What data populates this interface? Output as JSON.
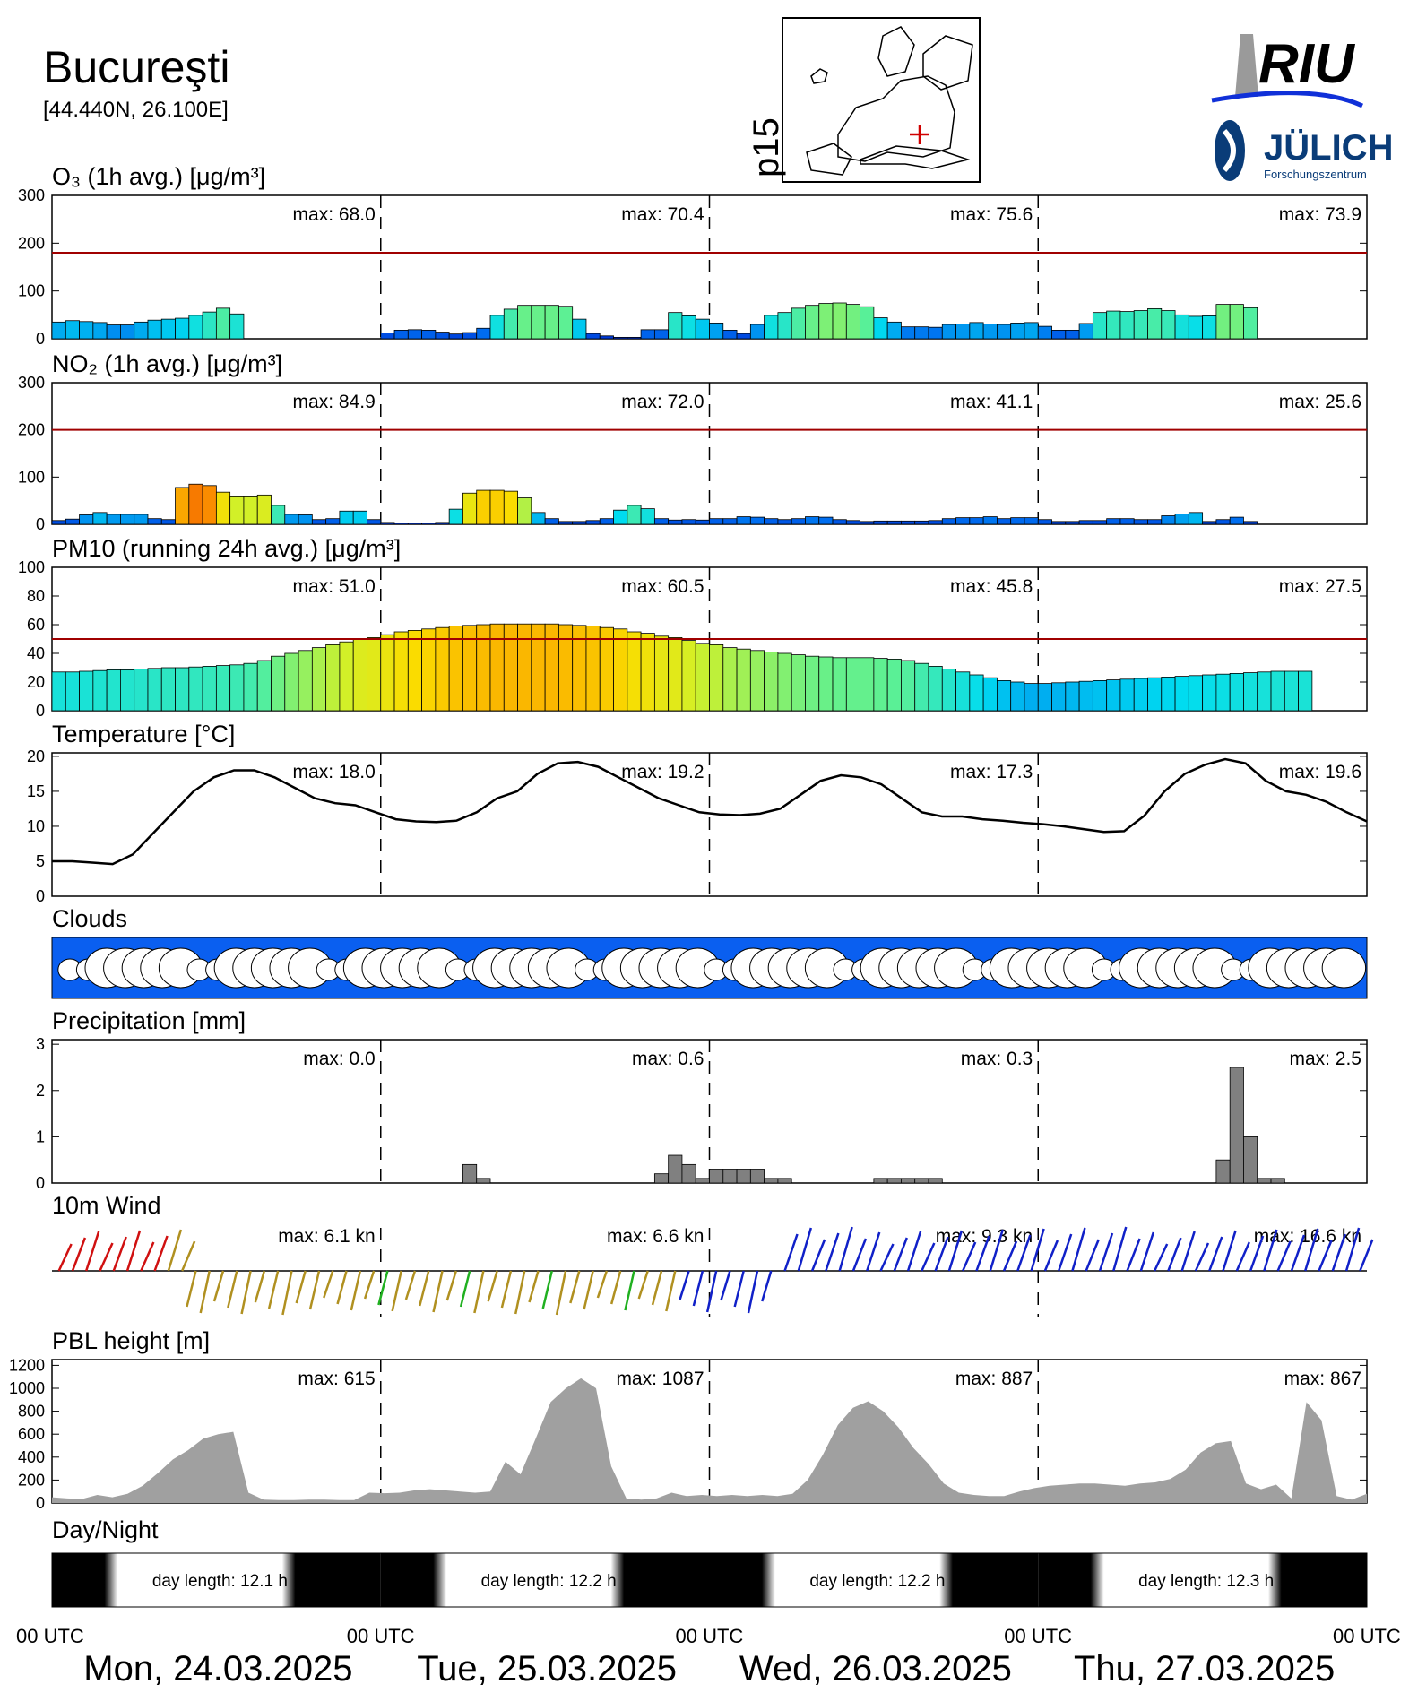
{
  "station": {
    "name": "Bucureşti",
    "coords": "[44.440N, 26.100E]",
    "map_label": "p15"
  },
  "logos": {
    "riu": "RIU",
    "julich": "JÜLICH",
    "julich_sub": "Forschungszentrum"
  },
  "panels": {
    "o3": {
      "title": "O₃ (1h avg.) [μg/m³]",
      "maxes": [
        "max:  68.0",
        "max:  70.4",
        "max:  75.6",
        "max:  73.9"
      ],
      "ticks": [
        "0",
        "100",
        "200",
        "300"
      ]
    },
    "no2": {
      "title": "NO₂ (1h avg.) [μg/m³]",
      "maxes": [
        "max:  84.9",
        "max:  72.0",
        "max:  41.1",
        "max:  25.6"
      ],
      "ticks": [
        "0",
        "100",
        "200",
        "300"
      ]
    },
    "pm10": {
      "title": "PM10 (running 24h avg.) [μg/m³]",
      "maxes": [
        "max:  51.0",
        "max:  60.5",
        "max:  45.8",
        "max:  27.5"
      ],
      "ticks": [
        "0",
        "20",
        "40",
        "60",
        "80",
        "100"
      ]
    },
    "temp": {
      "title": "Temperature [°C]",
      "maxes": [
        "max:  18.0",
        "max:  19.2",
        "max:  17.3",
        "max:  19.6"
      ],
      "ticks": [
        "0",
        "5",
        "10",
        "15",
        "20"
      ]
    },
    "clouds": {
      "title": "Clouds"
    },
    "precip": {
      "title": "Precipitation [mm]",
      "maxes": [
        "max:   0.0",
        "max:   0.6",
        "max:   0.3",
        "max:   2.5"
      ],
      "ticks": [
        "0",
        "1",
        "2",
        "3"
      ]
    },
    "wind": {
      "title": "10m Wind",
      "maxes": [
        "max:   6.1 kn",
        "max:   6.6 kn",
        "max:   9.3 kn",
        "max:  16.6 kn"
      ]
    },
    "pbl": {
      "title": "PBL height [m]",
      "maxes": [
        "max:   615",
        "max:  1087",
        "max:   887",
        "max:   867"
      ],
      "ticks": [
        "0",
        "200",
        "400",
        "600",
        "800",
        "1000",
        "1200"
      ]
    },
    "daynight": {
      "title": "Day/Night",
      "labels": [
        "day length:  12.1 h",
        "day length:  12.2 h",
        "day length:  12.2 h",
        "day length:  12.3 h"
      ]
    }
  },
  "axis": {
    "utc": "00 UTC",
    "dates": [
      "Mon, 24.03.2025",
      "Tue, 25.03.2025",
      "Wed, 26.03.2025",
      "Thu, 27.03.2025"
    ]
  },
  "colors": {
    "threshold": "#a00000",
    "clouds_bg": "#0a5ff0",
    "pbl": "#a0a0a0",
    "precip": "#808080"
  },
  "chart_data": [
    {
      "type": "bar",
      "title": "O₃ (1h avg.) [μg/m³]",
      "ylim": [
        0,
        300
      ],
      "threshold": 180,
      "x_step_hours": 3,
      "values": [
        35,
        38,
        36,
        34,
        29,
        29,
        35,
        39,
        41,
        43,
        49,
        56,
        64,
        52,
        0,
        0,
        0,
        0,
        0,
        0,
        0,
        0,
        0,
        0,
        12,
        18,
        19,
        18,
        14,
        10,
        13,
        22,
        49,
        62,
        70,
        70,
        70,
        68,
        41,
        11,
        6,
        3,
        3,
        19,
        19,
        55,
        48,
        41,
        33,
        18,
        11,
        30,
        49,
        55,
        64,
        70,
        74,
        75,
        72,
        67,
        44,
        35,
        25,
        25,
        24,
        30,
        31,
        34,
        31,
        30,
        33,
        34,
        26,
        18,
        18,
        32,
        55,
        58,
        57,
        59,
        63,
        59,
        50,
        47,
        48,
        72,
        72,
        65
      ]
    },
    {
      "type": "bar",
      "title": "NO₂ (1h avg.) [μg/m³]",
      "ylim": [
        0,
        300
      ],
      "threshold": 200,
      "values": [
        8,
        11,
        20,
        25,
        21,
        21,
        21,
        12,
        10,
        78,
        85,
        82,
        68,
        60,
        60,
        62,
        40,
        21,
        20,
        10,
        12,
        28,
        28,
        10,
        4,
        3,
        3,
        3,
        4,
        32,
        66,
        72,
        72,
        70,
        56,
        25,
        12,
        6,
        6,
        8,
        12,
        30,
        40,
        33,
        12,
        9,
        10,
        9,
        12,
        12,
        16,
        15,
        12,
        10,
        12,
        16,
        15,
        10,
        8,
        6,
        7,
        7,
        7,
        7,
        8,
        12,
        14,
        14,
        16,
        12,
        14,
        14,
        10,
        6,
        6,
        8,
        8,
        12,
        12,
        10,
        10,
        18,
        22,
        25,
        6,
        10,
        15,
        6
      ]
    },
    {
      "type": "bar",
      "title": "PM10 (running 24h avg.) [μg/m³]",
      "ylim": [
        0,
        100
      ],
      "threshold": 50,
      "values": [
        27,
        27,
        27.5,
        28,
        28.5,
        28.5,
        29,
        29.5,
        30,
        30,
        30.5,
        31,
        31.5,
        32,
        33,
        35,
        38,
        40,
        42,
        44,
        46,
        48,
        50,
        51,
        53,
        55,
        56,
        57,
        58,
        59,
        59.5,
        60,
        60.5,
        60.5,
        60.5,
        60.5,
        60.5,
        60,
        59.5,
        59,
        58,
        57,
        55,
        54,
        52,
        51,
        49,
        47,
        46,
        44,
        43,
        42,
        41,
        40,
        39,
        38,
        37.5,
        37,
        37,
        37,
        36.5,
        36,
        35,
        33,
        31,
        29,
        27,
        25,
        23,
        21,
        20,
        19,
        19,
        19.5,
        20,
        20.5,
        21,
        21.5,
        22,
        22.5,
        23,
        23.5,
        24,
        24.5,
        25,
        25.5,
        26,
        26.5,
        27,
        27.5,
        27.5,
        27.5
      ]
    },
    {
      "type": "line",
      "title": "Temperature [°C]",
      "ylim": [
        0,
        20
      ],
      "values": [
        5,
        5,
        4.8,
        4.6,
        6,
        9,
        12,
        15,
        17,
        18,
        18,
        17,
        15.5,
        14,
        13.3,
        13,
        12,
        11,
        10.7,
        10.6,
        10.8,
        12,
        14,
        15,
        17.5,
        19,
        19.2,
        18.5,
        17,
        15.5,
        14,
        13,
        12,
        11.7,
        11.6,
        11.8,
        12.5,
        14.5,
        16.5,
        17.3,
        17,
        16,
        14,
        12,
        11.4,
        11.4,
        11,
        10.8,
        10.5,
        10.3,
        10,
        9.6,
        9.2,
        9.3,
        11.5,
        15,
        17.5,
        18.8,
        19.6,
        19,
        16.5,
        15,
        14.5,
        13.5,
        12,
        10.7
      ]
    },
    {
      "type": "bar",
      "title": "Precipitation [mm]",
      "ylim": [
        0,
        3
      ],
      "values": [
        0,
        0,
        0,
        0,
        0,
        0,
        0,
        0,
        0,
        0,
        0,
        0,
        0,
        0,
        0,
        0,
        0,
        0,
        0,
        0,
        0,
        0,
        0,
        0,
        0,
        0,
        0,
        0,
        0,
        0,
        0.4,
        0.1,
        0,
        0,
        0,
        0,
        0,
        0,
        0,
        0,
        0,
        0,
        0,
        0,
        0.2,
        0.6,
        0.4,
        0.1,
        0.3,
        0.3,
        0.3,
        0.3,
        0.1,
        0.1,
        0,
        0,
        0,
        0,
        0,
        0,
        0.1,
        0.1,
        0.1,
        0.1,
        0.1,
        0,
        0,
        0,
        0,
        0,
        0,
        0,
        0,
        0,
        0,
        0,
        0,
        0,
        0,
        0,
        0,
        0,
        0,
        0,
        0,
        0.5,
        2.5,
        1,
        0.1,
        0.1
      ]
    },
    {
      "type": "area",
      "title": "PBL height [m]",
      "ylim": [
        0,
        1200
      ],
      "values": [
        50,
        40,
        35,
        70,
        50,
        80,
        150,
        260,
        380,
        460,
        560,
        600,
        620,
        90,
        30,
        25,
        25,
        30,
        30,
        25,
        25,
        90,
        85,
        90,
        110,
        120,
        110,
        100,
        90,
        100,
        360,
        250,
        560,
        880,
        1000,
        1087,
        1000,
        320,
        40,
        30,
        40,
        90,
        60,
        70,
        60,
        70,
        60,
        70,
        60,
        80,
        200,
        420,
        680,
        830,
        887,
        800,
        660,
        480,
        340,
        170,
        90,
        70,
        60,
        60,
        100,
        130,
        150,
        160,
        170,
        170,
        160,
        150,
        170,
        180,
        210,
        290,
        440,
        520,
        540,
        170,
        120,
        160,
        40,
        880,
        720,
        60,
        30,
        80
      ]
    },
    {
      "type": "heatmap",
      "title": "Day/Night",
      "series": [
        {
          "name": "day length",
          "values": [
            12.1,
            12.2,
            12.2,
            12.3
          ]
        }
      ]
    }
  ]
}
